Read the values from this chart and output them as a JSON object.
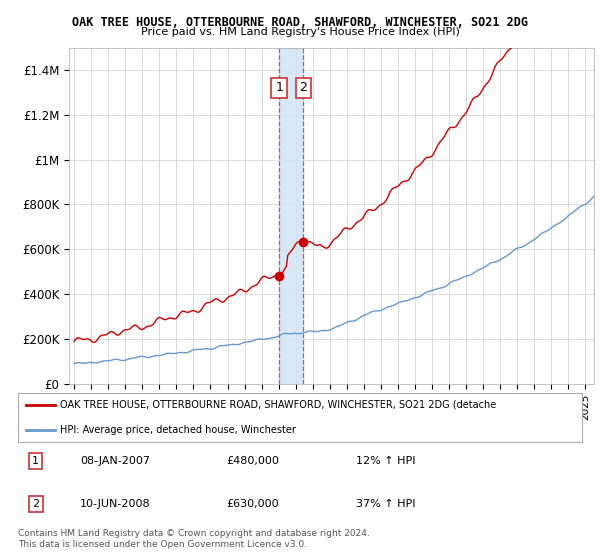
{
  "title1": "OAK TREE HOUSE, OTTERBOURNE ROAD, SHAWFORD, WINCHESTER, SO21 2DG",
  "title2": "Price paid vs. HM Land Registry's House Price Index (HPI)",
  "xlim_start": 1994.7,
  "xlim_end": 2025.5,
  "ylim": [
    0,
    1500000
  ],
  "yticks": [
    0,
    200000,
    400000,
    600000,
    800000,
    1000000,
    1200000,
    1400000
  ],
  "ytick_labels": [
    "£0",
    "£200K",
    "£400K",
    "£600K",
    "£800K",
    "£1M",
    "£1.2M",
    "£1.4M"
  ],
  "xtick_years": [
    1995,
    1996,
    1997,
    1998,
    1999,
    2000,
    2001,
    2002,
    2003,
    2004,
    2005,
    2006,
    2007,
    2008,
    2009,
    2010,
    2011,
    2012,
    2013,
    2014,
    2015,
    2016,
    2017,
    2018,
    2019,
    2020,
    2021,
    2022,
    2023,
    2024,
    2025
  ],
  "sale1_x": 2007.03,
  "sale1_y": 480000,
  "sale2_x": 2008.44,
  "sale2_y": 630000,
  "shade_x1": 2007.03,
  "shade_x2": 2008.44,
  "line1_color": "#cc0000",
  "line2_color": "#6699cc",
  "shade_color": "#d0e4f5",
  "legend1_label": "OAK TREE HOUSE, OTTERBOURNE ROAD, SHAWFORD, WINCHESTER, SO21 2DG (detache",
  "legend2_label": "HPI: Average price, detached house, Winchester",
  "table_row1": [
    "1",
    "08-JAN-2007",
    "£480,000",
    "12% ↑ HPI"
  ],
  "table_row2": [
    "2",
    "10-JUN-2008",
    "£630,000",
    "37% ↑ HPI"
  ],
  "footer": "Contains HM Land Registry data © Crown copyright and database right 2024.\nThis data is licensed under the Open Government Licence v3.0."
}
